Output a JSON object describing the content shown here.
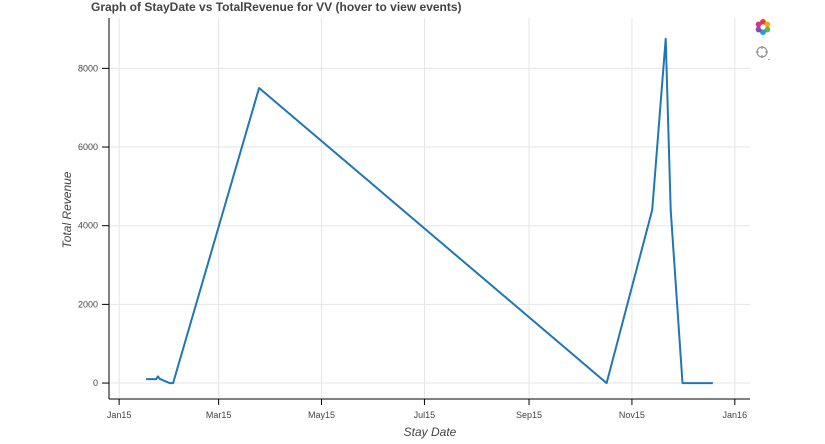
{
  "chart_data": {
    "type": "line",
    "title": "Graph of StayDate vs TotalRevenue for VV (hover to view events)",
    "xlabel": "Stay Date",
    "ylabel": "Total Revenue",
    "x_ticks": [
      {
        "date": "2015-01-01",
        "label": "Jan15"
      },
      {
        "date": "2015-03-01",
        "label": "Mar15"
      },
      {
        "date": "2015-05-01",
        "label": "May15"
      },
      {
        "date": "2015-07-01",
        "label": "Jul15"
      },
      {
        "date": "2015-09-01",
        "label": "Sep15"
      },
      {
        "date": "2015-11-01",
        "label": "Nov15"
      },
      {
        "date": "2016-01-01",
        "label": "Jan16"
      }
    ],
    "y_ticks": [
      0,
      2000,
      4000,
      6000,
      8000
    ],
    "xlim": [
      "2014-12-26",
      "2016-01-10"
    ],
    "ylim": [
      -380,
      9280
    ],
    "grid": true,
    "series": [
      {
        "color": "#1f77b4",
        "points": [
          {
            "x": "2015-01-17",
            "y": 100
          },
          {
            "x": "2015-01-23",
            "y": 100
          },
          {
            "x": "2015-01-24",
            "y": 170
          },
          {
            "x": "2015-01-25",
            "y": 110
          },
          {
            "x": "2015-01-27",
            "y": 70
          },
          {
            "x": "2015-01-31",
            "y": 0
          },
          {
            "x": "2015-02-02",
            "y": 0
          },
          {
            "x": "2015-03-25",
            "y": 7500
          },
          {
            "x": "2015-10-17",
            "y": 0
          },
          {
            "x": "2015-11-13",
            "y": 4400
          },
          {
            "x": "2015-11-21",
            "y": 8750
          },
          {
            "x": "2015-11-24",
            "y": 4400
          },
          {
            "x": "2015-12-01",
            "y": 0
          },
          {
            "x": "2015-12-19",
            "y": 0
          }
        ]
      }
    ]
  },
  "toolbar": {
    "tools": [
      {
        "name": "bokeh-logo-icon"
      },
      {
        "name": "hover-tool-icon"
      }
    ]
  }
}
